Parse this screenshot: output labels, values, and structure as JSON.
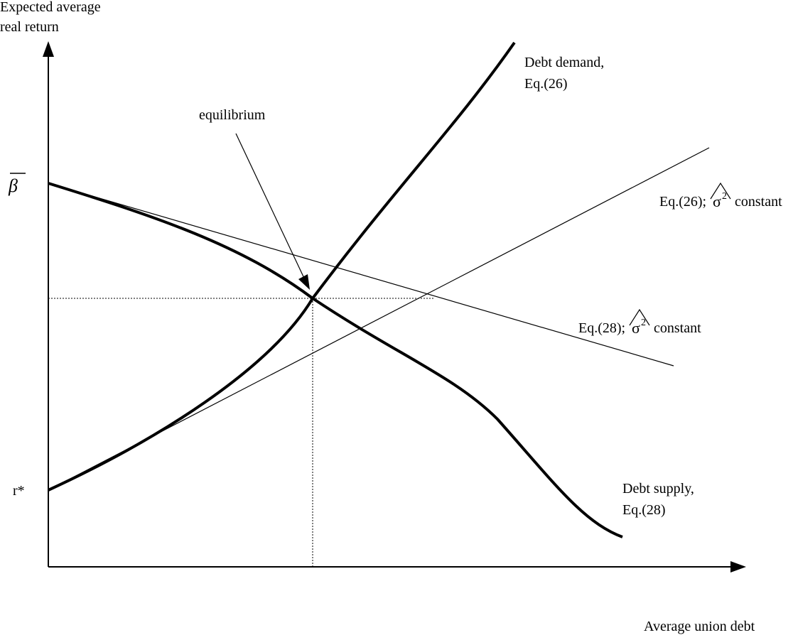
{
  "axes": {
    "y_label_line1": "Expected average",
    "y_label_line2": "real return",
    "x_label": "Average union debt",
    "beta_label": "β",
    "r_star_label": "r*"
  },
  "labels": {
    "equilibrium": "equilibrium",
    "debt_demand_line1": "Debt demand,",
    "debt_demand_line2": "Eq.(26)",
    "debt_supply_line1": "Debt supply,",
    "debt_supply_line2": "Eq.(28)",
    "eq26_prefix": "Eq.(26);",
    "eq26_sigma": "σ",
    "eq26_sup": "2",
    "eq26_suffix": "constant",
    "eq28_prefix": "Eq.(28);",
    "eq28_sigma": "σ",
    "eq28_sup": "2",
    "eq28_suffix": "constant"
  },
  "colors": {
    "ink": "#000000",
    "background": "#ffffff"
  }
}
